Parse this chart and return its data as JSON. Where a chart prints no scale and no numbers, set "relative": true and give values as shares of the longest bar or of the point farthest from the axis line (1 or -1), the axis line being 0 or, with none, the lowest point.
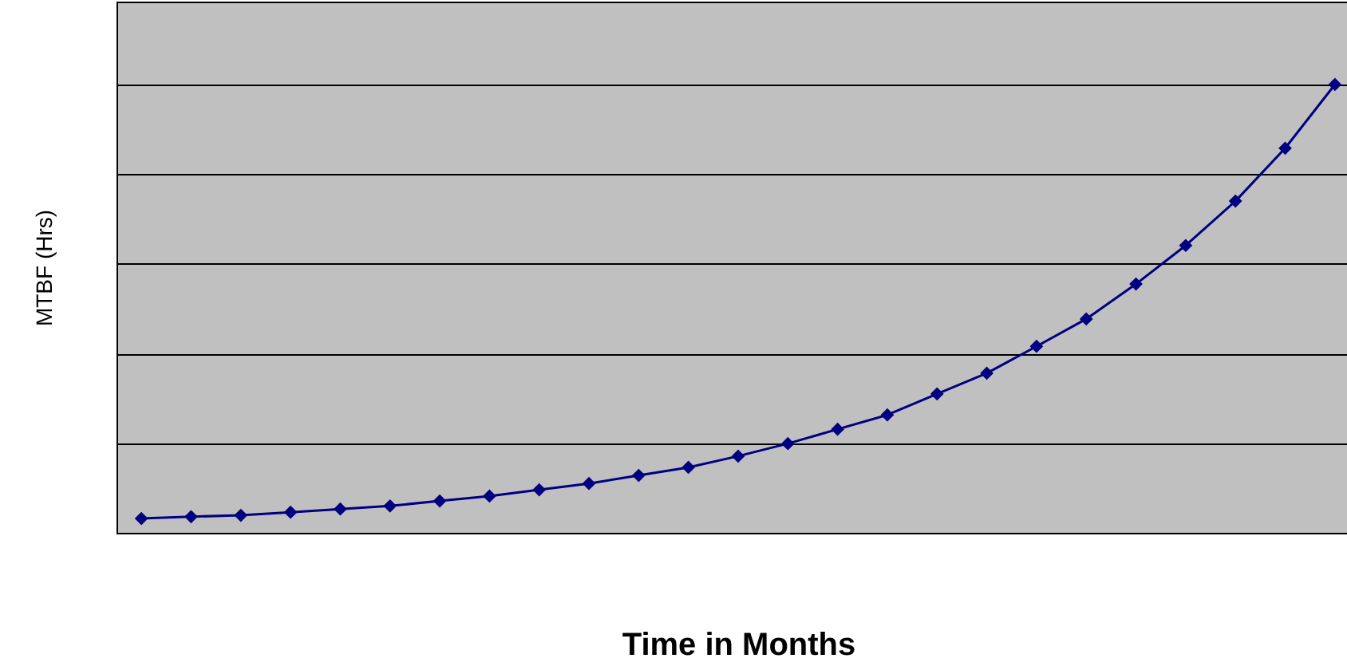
{
  "chart_data": {
    "type": "line",
    "xlabel": "Time in Months",
    "ylabel": "MTBF (Hrs)",
    "relative": true,
    "categories": [
      null,
      null,
      null,
      null,
      null,
      null,
      null,
      null,
      null,
      null,
      null,
      null,
      null,
      null,
      null,
      null,
      null,
      null,
      null,
      null,
      null,
      null,
      null,
      null,
      null
    ],
    "series": [
      {
        "color": "#000080",
        "values": [
          0.032,
          0.036,
          0.039,
          0.046,
          0.053,
          0.06,
          0.071,
          0.082,
          0.096,
          0.11,
          0.128,
          0.146,
          0.171,
          0.199,
          0.231,
          0.263,
          0.31,
          0.356,
          0.416,
          0.477,
          0.555,
          0.641,
          0.74,
          0.858,
          1
        ]
      }
    ],
    "marker": "diamond",
    "line_style": "solid",
    "grid": "y",
    "legend": false
  }
}
